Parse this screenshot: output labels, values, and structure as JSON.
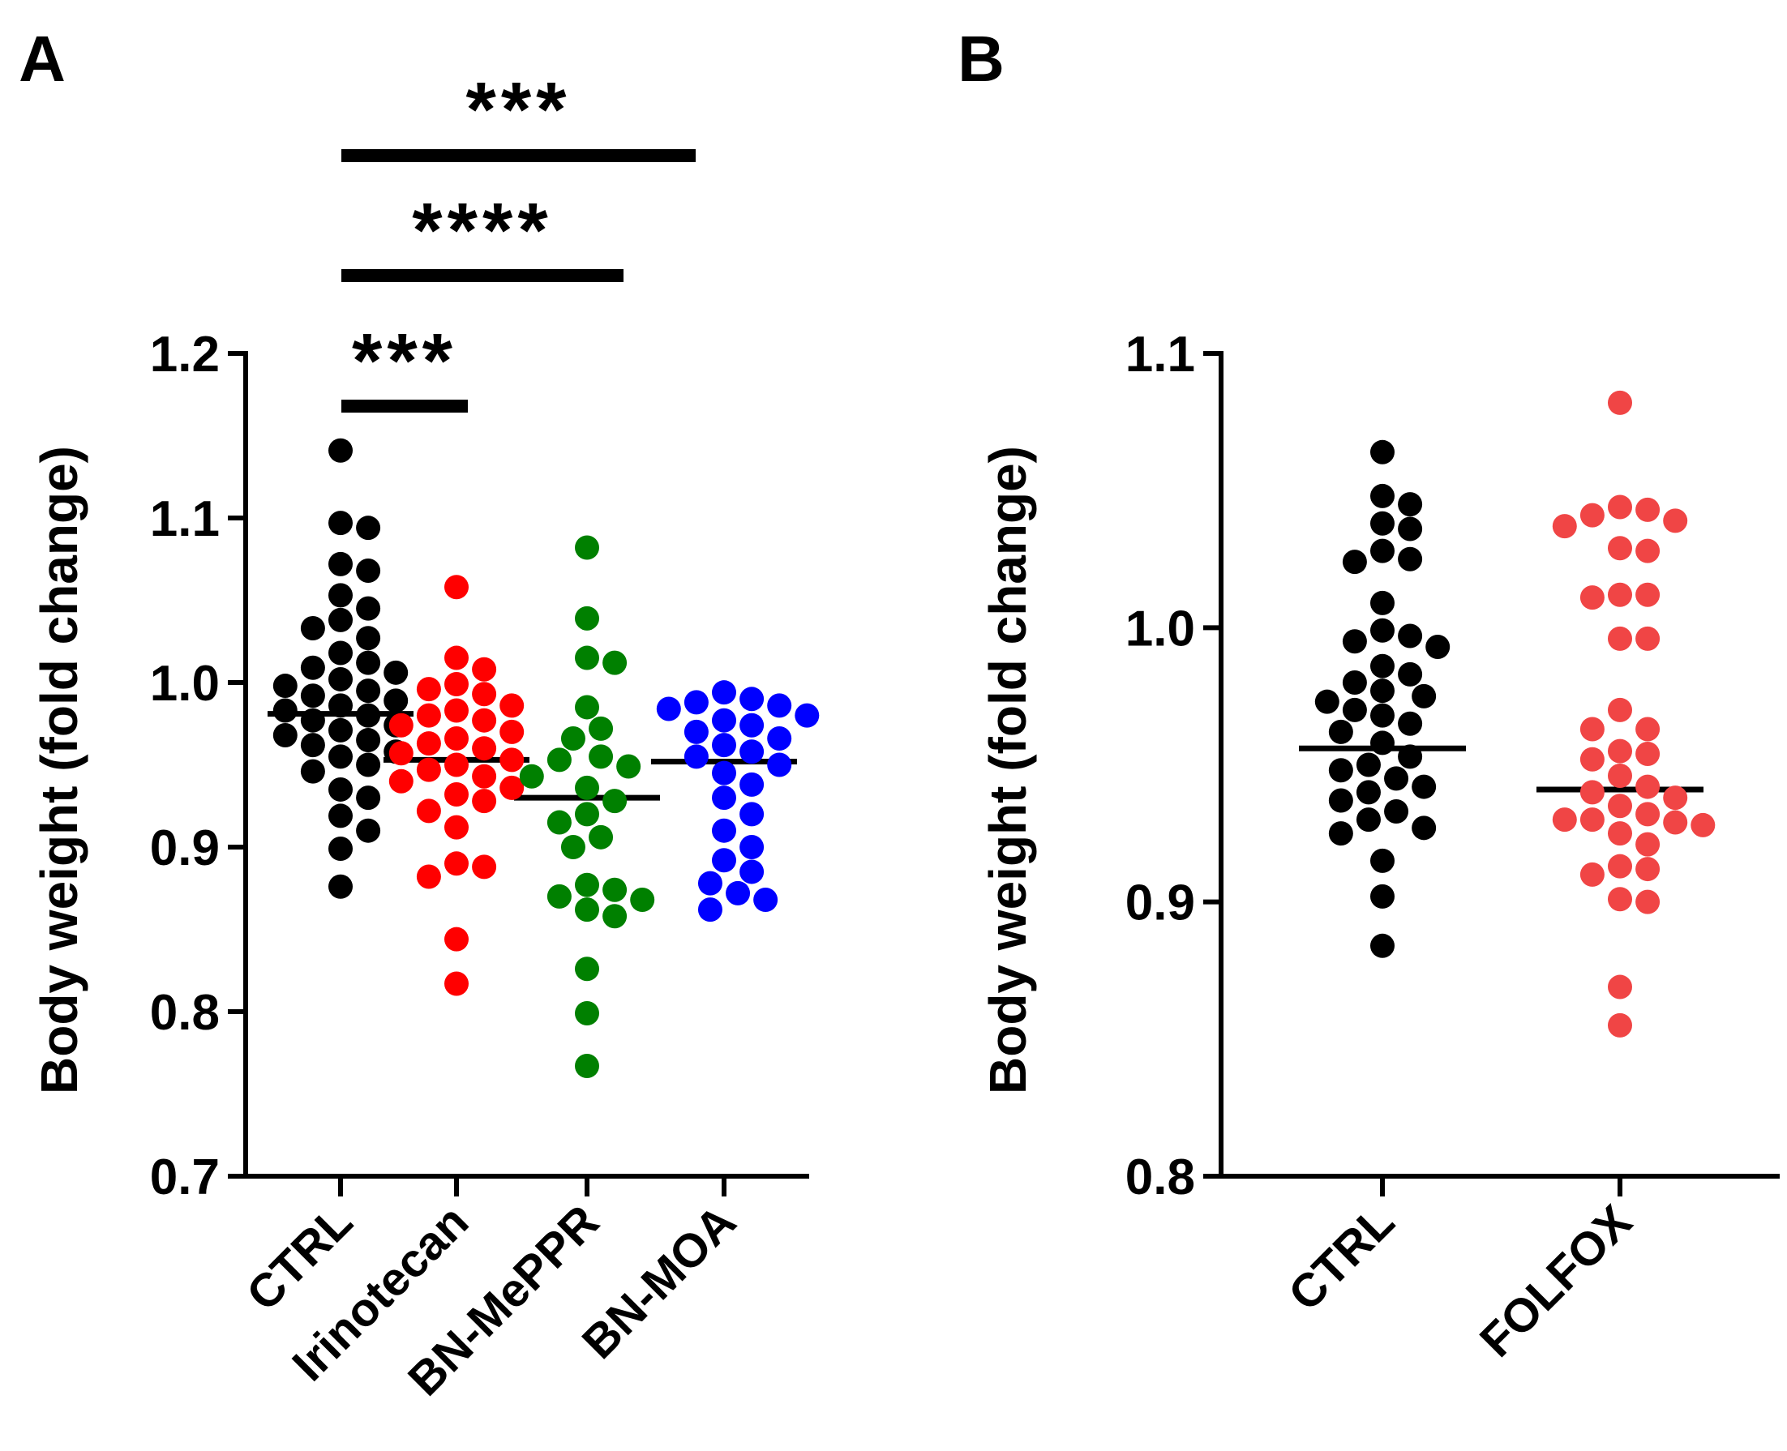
{
  "chart_data": [
    {
      "panel_label": "A",
      "type": "scatter",
      "ylabel": "Body weight (fold change)",
      "ylim": [
        0.7,
        1.2
      ],
      "yticks": [
        0.7,
        0.8,
        0.9,
        1.0,
        1.1,
        1.2
      ],
      "ytick_labels": [
        "0.7",
        "0.8",
        "0.9",
        "1.0",
        "1.1",
        "1.2"
      ],
      "categories": [
        "CTRL",
        "Irinotecan",
        "BN-MePPR",
        "BN-MOA"
      ],
      "series": [
        {
          "name": "CTRL",
          "color": "#000000",
          "mean": 0.981,
          "points": [
            1.141,
            1.097,
            1.094,
            1.072,
            1.068,
            1.053,
            1.045,
            1.038,
            1.033,
            1.027,
            1.018,
            1.012,
            1.009,
            1.006,
            1.002,
            0.998,
            0.995,
            0.992,
            0.989,
            0.986,
            0.983,
            0.98,
            0.977,
            0.974,
            0.971,
            0.968,
            0.965,
            0.962,
            0.958,
            0.955,
            0.95,
            0.946,
            0.935,
            0.93,
            0.919,
            0.91,
            0.899,
            0.876
          ]
        },
        {
          "name": "Irinotecan",
          "color": "#ff0000",
          "mean": 0.953,
          "points": [
            1.058,
            1.015,
            1.008,
            0.999,
            0.996,
            0.993,
            0.986,
            0.983,
            0.98,
            0.977,
            0.974,
            0.97,
            0.966,
            0.963,
            0.96,
            0.957,
            0.953,
            0.95,
            0.947,
            0.943,
            0.94,
            0.936,
            0.932,
            0.928,
            0.922,
            0.912,
            0.89,
            0.888,
            0.882,
            0.844,
            0.817
          ]
        },
        {
          "name": "BN-MePPR",
          "color": "#008000",
          "mean": 0.93,
          "points": [
            1.082,
            1.039,
            1.015,
            1.012,
            0.985,
            0.972,
            0.966,
            0.955,
            0.953,
            0.949,
            0.943,
            0.936,
            0.928,
            0.92,
            0.915,
            0.906,
            0.9,
            0.877,
            0.874,
            0.87,
            0.868,
            0.862,
            0.858,
            0.826,
            0.799,
            0.767
          ]
        },
        {
          "name": "BN-MOA",
          "color": "#0000ff",
          "mean": 0.952,
          "points": [
            0.994,
            0.99,
            0.988,
            0.986,
            0.984,
            0.98,
            0.977,
            0.974,
            0.97,
            0.966,
            0.962,
            0.958,
            0.955,
            0.95,
            0.945,
            0.938,
            0.93,
            0.92,
            0.91,
            0.9,
            0.892,
            0.885,
            0.878,
            0.872,
            0.868,
            0.862
          ]
        }
      ],
      "significance": [
        {
          "label": "***",
          "from": "CTRL",
          "to": "Irinotecan"
        },
        {
          "label": "****",
          "from": "CTRL",
          "to": "BN-MePPR"
        },
        {
          "label": "***",
          "from": "CTRL",
          "to": "BN-MOA"
        }
      ]
    },
    {
      "panel_label": "B",
      "type": "scatter",
      "ylabel": "Body weight (fold change)",
      "ylim": [
        0.8,
        1.1
      ],
      "yticks": [
        0.8,
        0.9,
        1.0,
        1.1
      ],
      "ytick_labels": [
        "0.8",
        "0.9",
        "1.0",
        "1.1"
      ],
      "categories": [
        "CTRL",
        "FOLFOX"
      ],
      "series": [
        {
          "name": "CTRL",
          "color": "#000000",
          "mean": 0.956,
          "points": [
            1.064,
            1.048,
            1.045,
            1.038,
            1.036,
            1.028,
            1.025,
            1.024,
            1.009,
            0.999,
            0.997,
            0.995,
            0.993,
            0.986,
            0.983,
            0.98,
            0.977,
            0.975,
            0.973,
            0.97,
            0.968,
            0.965,
            0.962,
            0.958,
            0.953,
            0.95,
            0.948,
            0.945,
            0.942,
            0.94,
            0.937,
            0.933,
            0.93,
            0.927,
            0.925,
            0.915,
            0.902,
            0.884
          ]
        },
        {
          "name": "FOLFOX",
          "color": "#f04545",
          "mean": 0.941,
          "points": [
            1.082,
            1.044,
            1.043,
            1.041,
            1.039,
            1.037,
            1.029,
            1.028,
            1.012,
            1.012,
            1.011,
            0.996,
            0.996,
            0.97,
            0.963,
            0.963,
            0.955,
            0.954,
            0.952,
            0.946,
            0.942,
            0.94,
            0.938,
            0.935,
            0.932,
            0.93,
            0.93,
            0.929,
            0.928,
            0.925,
            0.921,
            0.913,
            0.912,
            0.91,
            0.901,
            0.9,
            0.869,
            0.855
          ]
        }
      ]
    }
  ]
}
